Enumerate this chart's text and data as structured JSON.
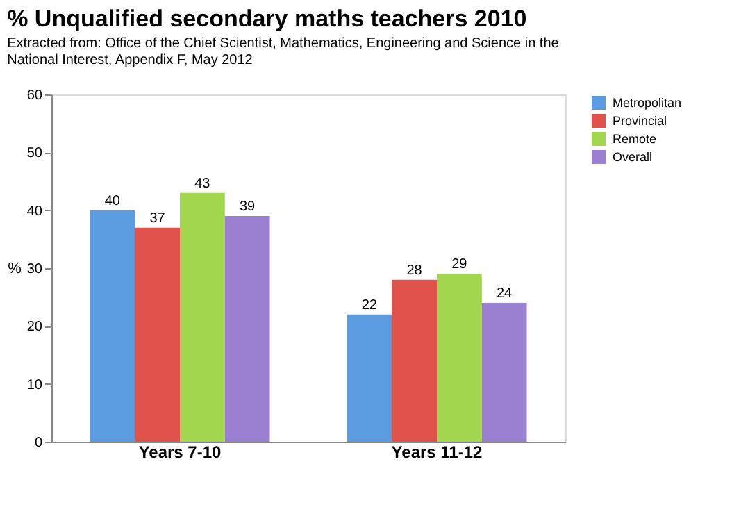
{
  "chart_data": {
    "type": "bar",
    "title": "% Unqualified secondary maths teachers 2010",
    "subtitle": "Extracted from: Office of the Chief Scientist, Mathematics, Engineering and Science in the National Interest, Appendix F, May 2012",
    "categories": [
      "Years 7-10",
      "Years 11-12"
    ],
    "series": [
      {
        "name": "Metropolitan",
        "color": "#5b9be0",
        "values": [
          40,
          22
        ]
      },
      {
        "name": "Provincial",
        "color": "#e0524c",
        "values": [
          37,
          28
        ]
      },
      {
        "name": "Remote",
        "color": "#a2d64e",
        "values": [
          43,
          29
        ]
      },
      {
        "name": "Overall",
        "color": "#9b80d2",
        "values": [
          39,
          24
        ]
      }
    ],
    "ylabel": "%",
    "ylim": [
      0,
      60
    ],
    "yticks": [
      0,
      10,
      20,
      30,
      40,
      50,
      60
    ],
    "grid": false,
    "legend": "right",
    "data_labels": true
  }
}
